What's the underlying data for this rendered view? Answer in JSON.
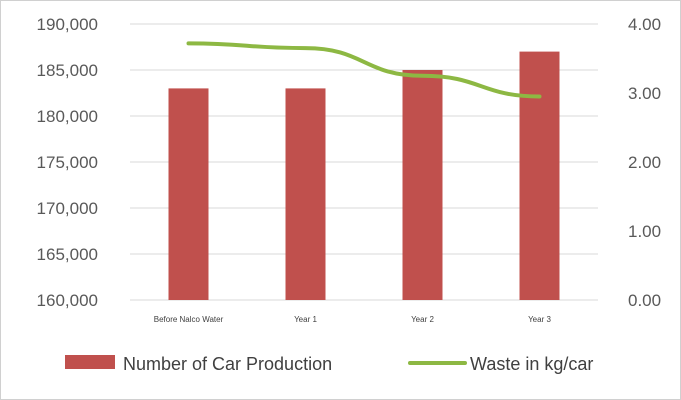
{
  "chart_data": {
    "type": "bar",
    "categories": [
      "Before Nalco Water",
      "Year 1",
      "Year 2",
      "Year 3"
    ],
    "series": [
      {
        "name": "Number of Car Production",
        "chart": "bar",
        "axis": "left",
        "color": "#c0504d",
        "values": [
          183000,
          183000,
          185000,
          187000
        ]
      },
      {
        "name": "Waste in kg/car",
        "chart": "line",
        "axis": "right",
        "color": "#8db843",
        "values": [
          3.72,
          3.65,
          3.25,
          2.95
        ]
      }
    ],
    "y_left": {
      "lim": [
        160000,
        190000
      ],
      "ticks": [
        160000,
        165000,
        170000,
        175000,
        180000,
        185000,
        190000
      ],
      "tick_labels": [
        "160,000",
        "165,000",
        "170,000",
        "175,000",
        "180,000",
        "185,000",
        "190,000"
      ]
    },
    "y_right": {
      "lim": [
        0,
        4
      ],
      "ticks": [
        0,
        1,
        2,
        3,
        4
      ],
      "tick_labels": [
        "0.00",
        "1.00",
        "2.00",
        "3.00",
        "4.00"
      ]
    },
    "grid": true,
    "legend_position": "bottom"
  }
}
